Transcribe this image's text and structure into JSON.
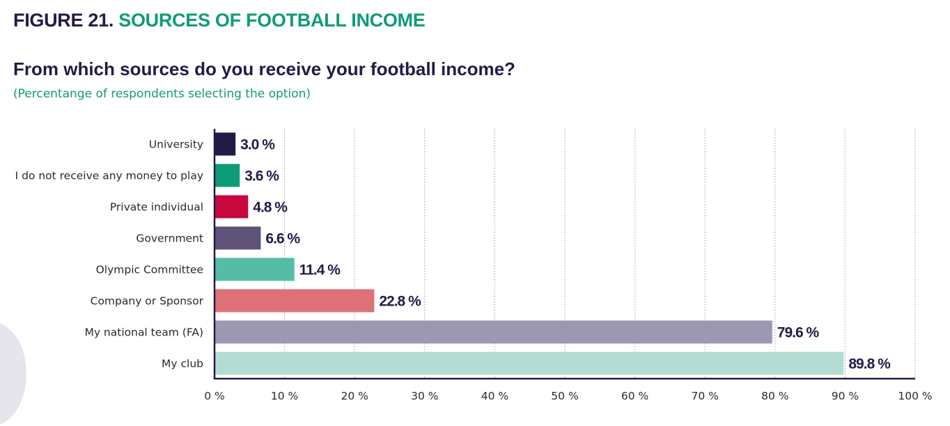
{
  "header": {
    "figure_label": "FIGURE 21.",
    "figure_name": "SOURCES OF FOOTBALL INCOME",
    "question": "From which sources do you receive your football income?",
    "subtitle": "(Percentange of respondents selecting the option)"
  },
  "chart_data": {
    "type": "bar",
    "orientation": "horizontal",
    "title": "From which sources do you receive your football income?",
    "subtitle": "(Percentange of respondents selecting the option)",
    "categories": [
      "University",
      "I do not receive any money to play",
      "Private individual",
      "Government",
      "Olympic Committee",
      "Company or Sponsor",
      "My national team (FA)",
      "My club"
    ],
    "values": [
      3.0,
      3.6,
      4.8,
      6.6,
      11.4,
      22.8,
      79.6,
      89.8
    ],
    "value_labels": [
      "3.0 %",
      "3.6 %",
      "4.8 %",
      "6.6 %",
      "11.4 %",
      "22.8 %",
      "79.6 %",
      "89.8 %"
    ],
    "colors": [
      "#231a47",
      "#0f9b78",
      "#c8073f",
      "#5e5279",
      "#55bca6",
      "#dd7177",
      "#9e97b3",
      "#b3ddd3"
    ],
    "xlim": [
      0,
      100
    ],
    "x_ticks": [
      0,
      10,
      20,
      30,
      40,
      50,
      60,
      70,
      80,
      90,
      100
    ],
    "x_tick_labels": [
      "0 %",
      "10 %",
      "20 %",
      "30 %",
      "40 %",
      "50 %",
      "60 %",
      "70 %",
      "80 %",
      "90 %",
      "100 %"
    ],
    "grid": "vertical dotted",
    "axis_color": "#231a47",
    "grid_color": "#9a9a9a"
  }
}
